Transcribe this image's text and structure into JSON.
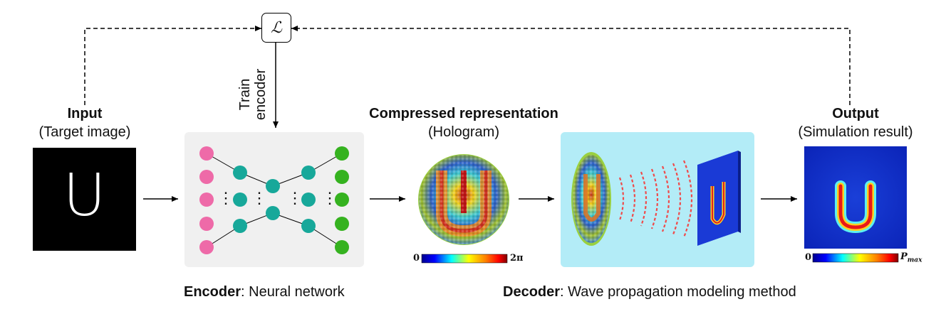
{
  "loss_symbol": "ℒ",
  "train_label_line1": "Train",
  "train_label_line2": "encoder",
  "input": {
    "title": "Input",
    "subtitle": "(Target image)",
    "glyph": "U"
  },
  "compressed": {
    "title": "Compressed representation",
    "subtitle": "(Hologram)",
    "colorbar_min": "0",
    "colorbar_max": "2π"
  },
  "output": {
    "title": "Output",
    "subtitle": "(Simulation result)",
    "colorbar_min": "0",
    "colorbar_max_main": "P",
    "colorbar_max_sub": "max"
  },
  "encoder_caption": {
    "bold": "Encoder",
    "rest": ": Neural network"
  },
  "decoder_caption": {
    "bold": "Decoder",
    "rest": ": Wave propagation modeling method"
  },
  "ellipsis": "⋮",
  "colors": {
    "encoder_panel": "#f0f0f0",
    "decoder_panel": "#b3ecf7",
    "input_node": "#ee6aa8",
    "hidden_node": "#17a89a",
    "output_node": "#35b21f",
    "wave": "#f04a4a"
  }
}
